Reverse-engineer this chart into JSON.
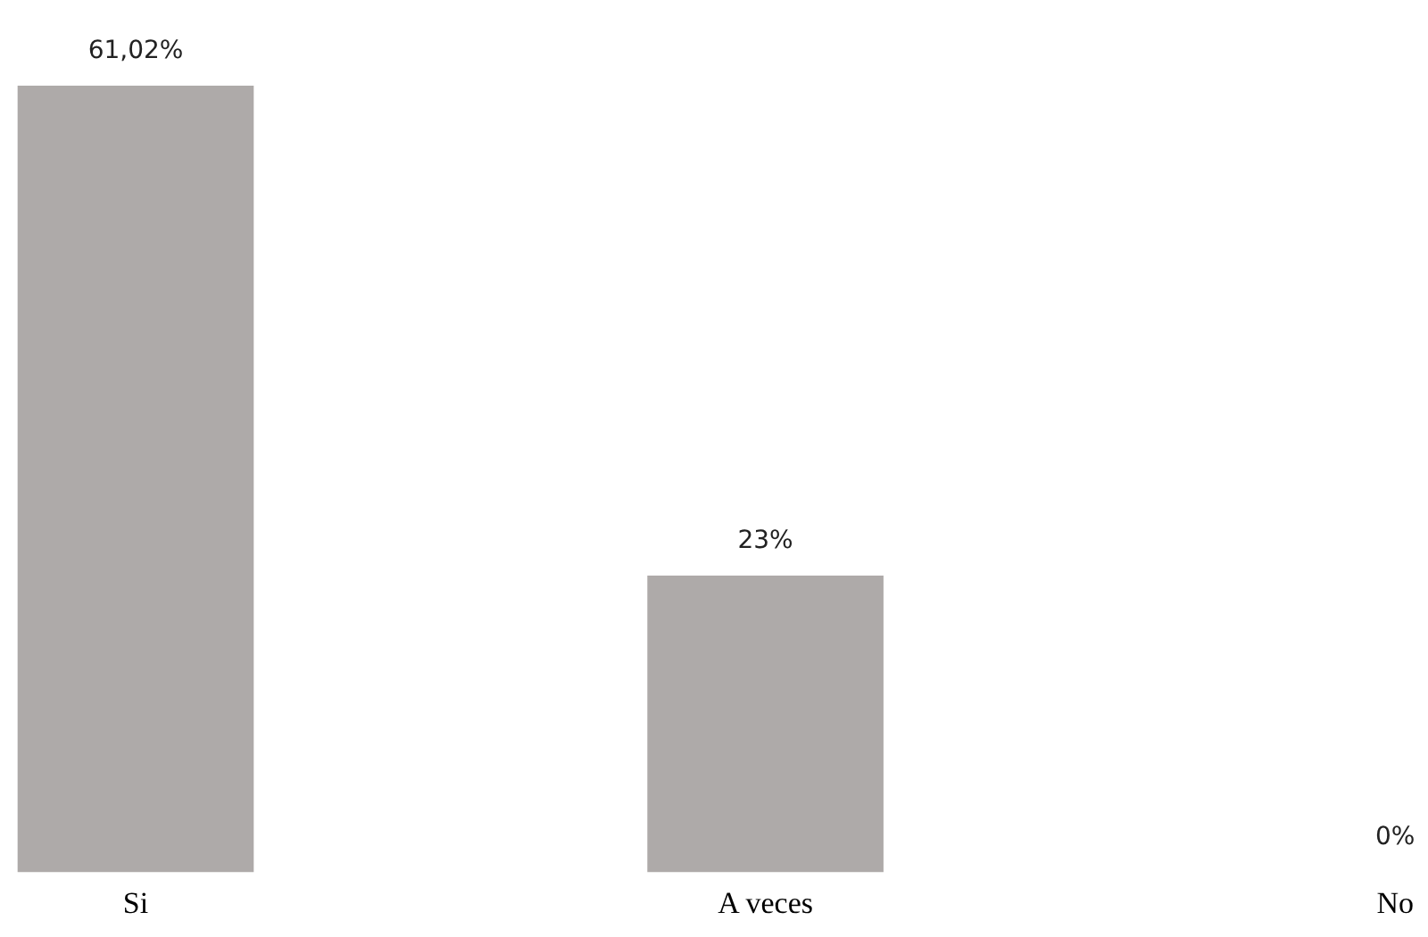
{
  "chart_data": {
    "type": "bar",
    "categories": [
      "Si",
      "A veces",
      "No"
    ],
    "values": [
      61.02,
      23,
      0
    ],
    "value_labels": [
      "61,02%",
      "23%",
      "0%"
    ],
    "color": "#aeaaa9",
    "grid": false,
    "legend": false
  }
}
